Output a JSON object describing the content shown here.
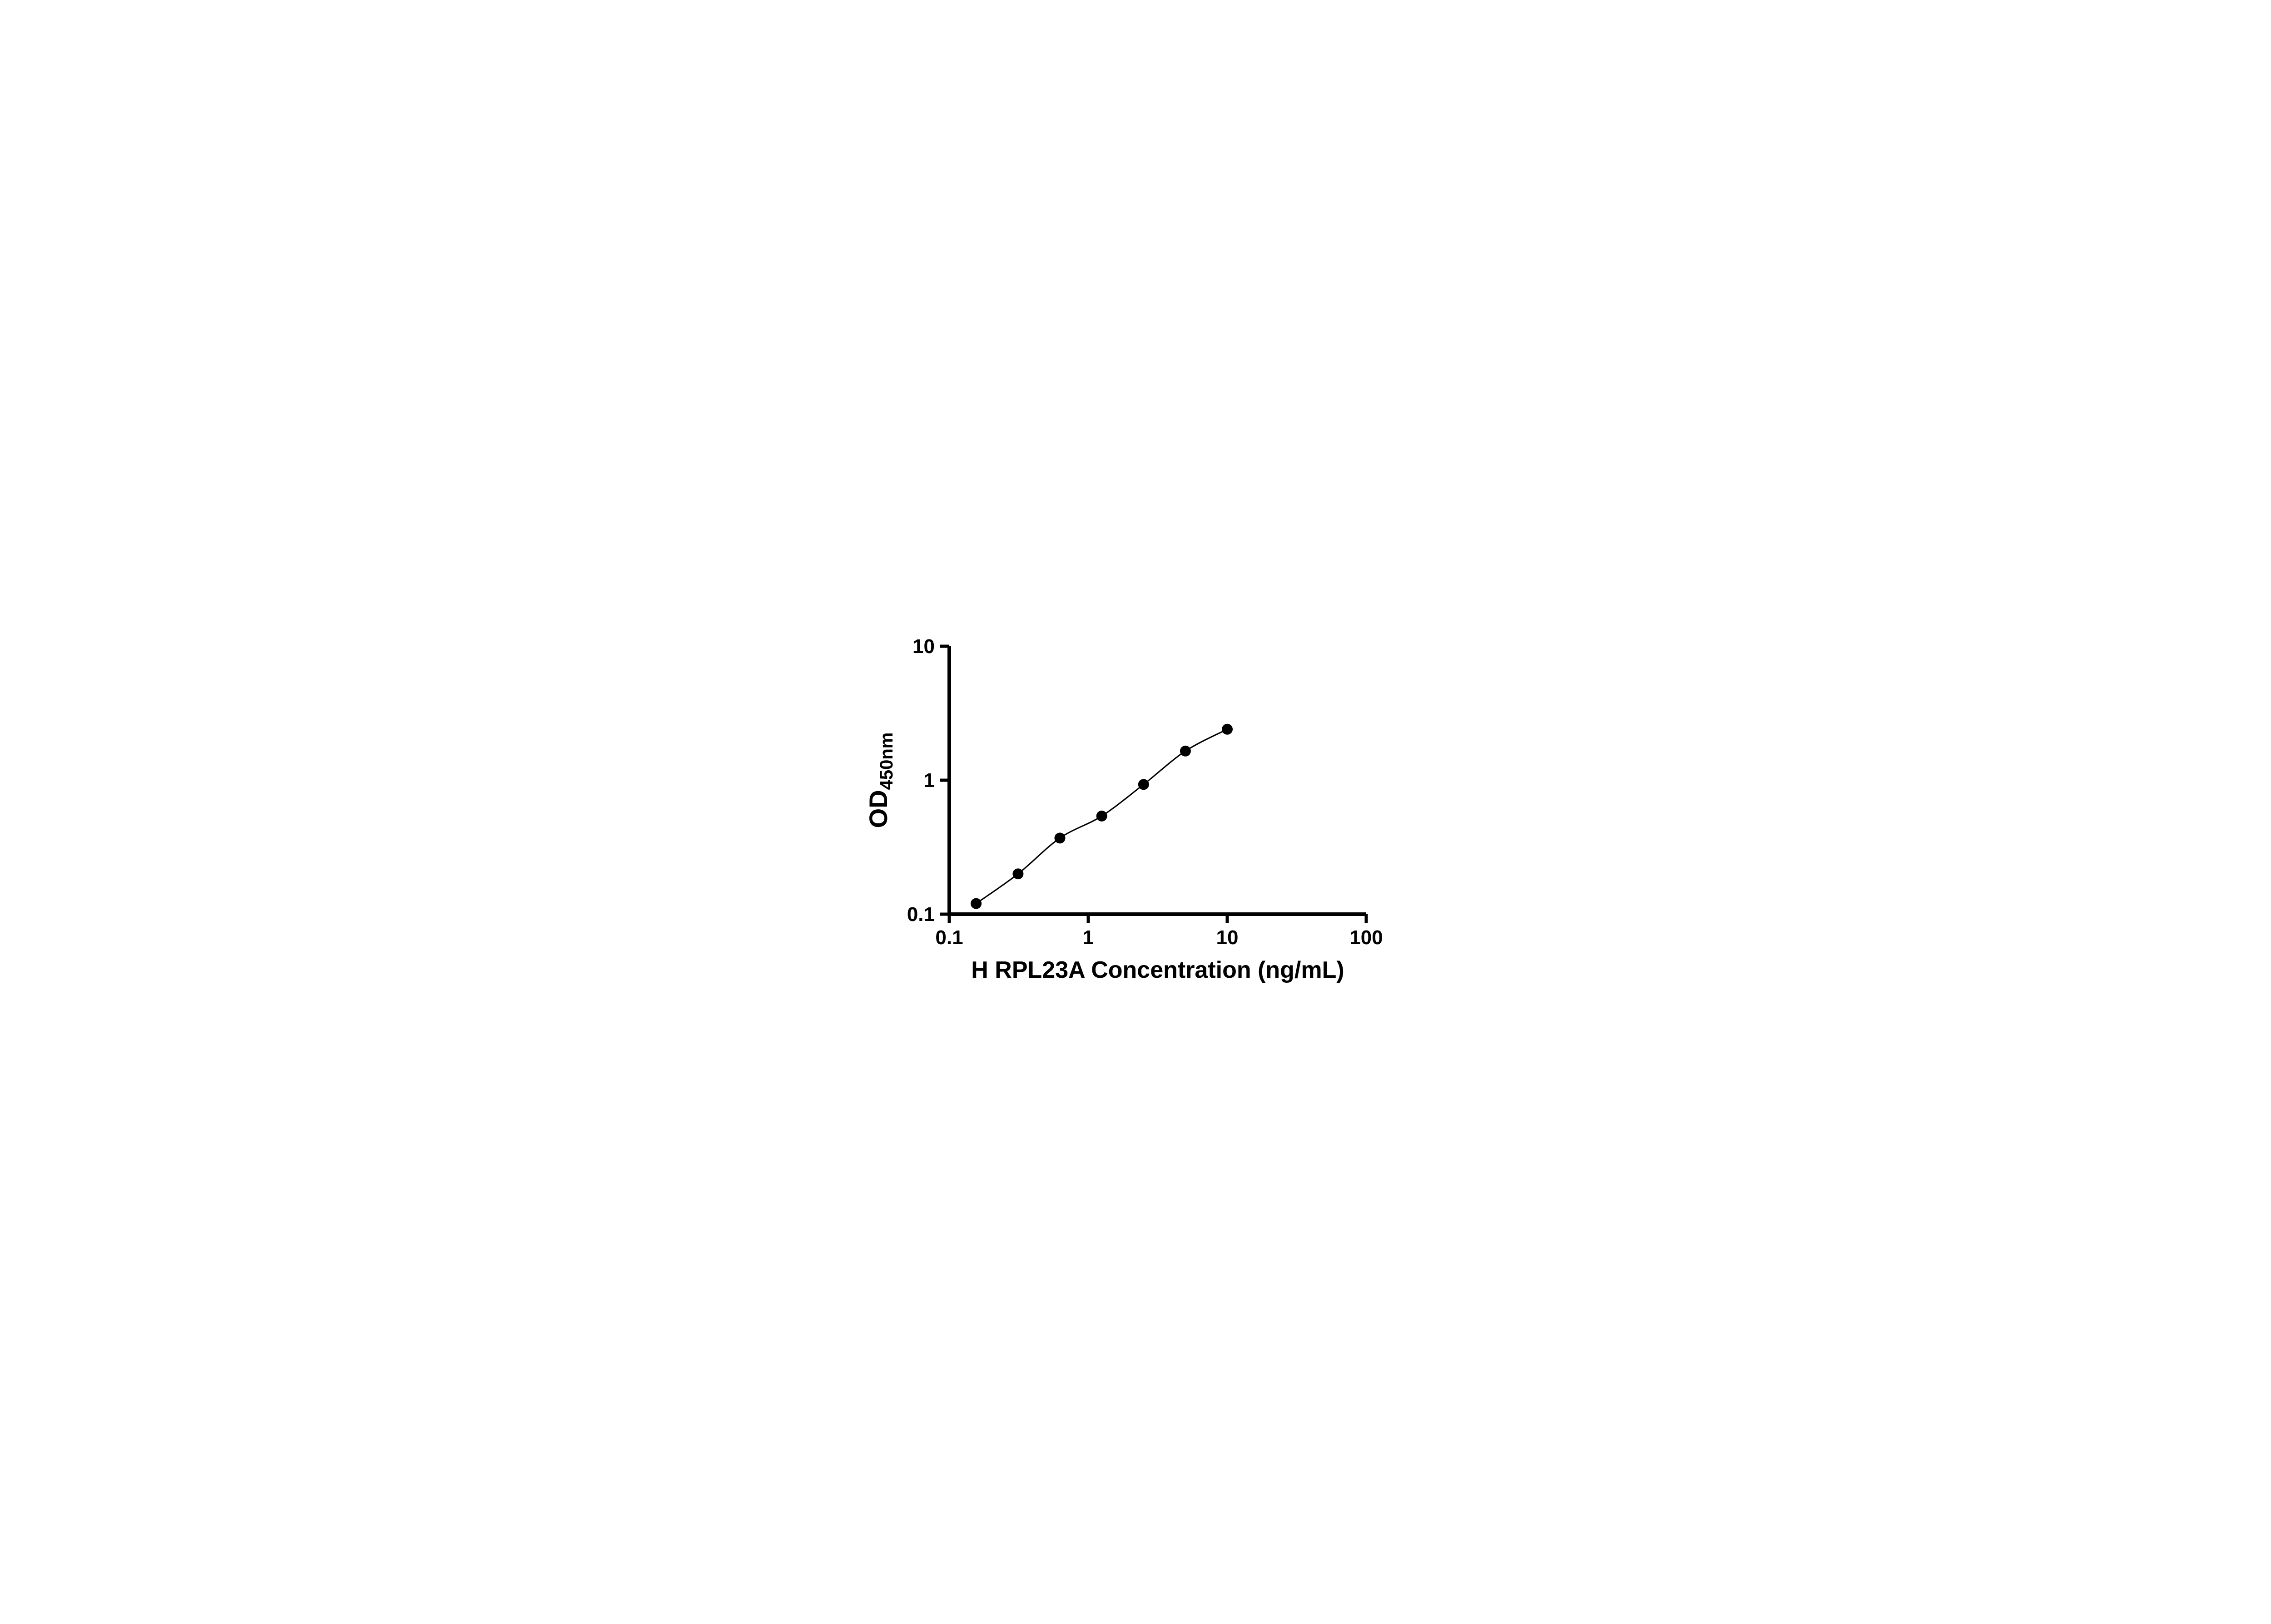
{
  "chart_data": {
    "type": "scatter",
    "title": "",
    "xlabel": "H RPL23A Concentration (ng/mL)",
    "ylabel_main": "OD",
    "ylabel_sub": "450nm",
    "x_scale": "log",
    "y_scale": "log",
    "xlim": [
      0.1,
      100
    ],
    "ylim": [
      0.1,
      10
    ],
    "x_ticks": [
      0.1,
      1,
      10,
      100
    ],
    "x_tick_labels": [
      "0.1",
      "1",
      "10",
      "100"
    ],
    "y_ticks": [
      0.1,
      1,
      10
    ],
    "y_tick_labels": [
      "0.1",
      "1",
      "10"
    ],
    "grid": false,
    "legend": "none",
    "colors": {
      "axis": "#000000",
      "marker": "#000000",
      "curve": "#000000",
      "background": "#ffffff"
    },
    "series": [
      {
        "marker": "filled-circle",
        "color": "#000000",
        "fit": "smooth-curve",
        "points": [
          {
            "x": 0.156,
            "y": 0.12
          },
          {
            "x": 0.3125,
            "y": 0.2
          },
          {
            "x": 0.625,
            "y": 0.37
          },
          {
            "x": 1.25,
            "y": 0.54
          },
          {
            "x": 2.5,
            "y": 0.93
          },
          {
            "x": 5,
            "y": 1.65
          },
          {
            "x": 10,
            "y": 2.4
          }
        ]
      }
    ]
  }
}
